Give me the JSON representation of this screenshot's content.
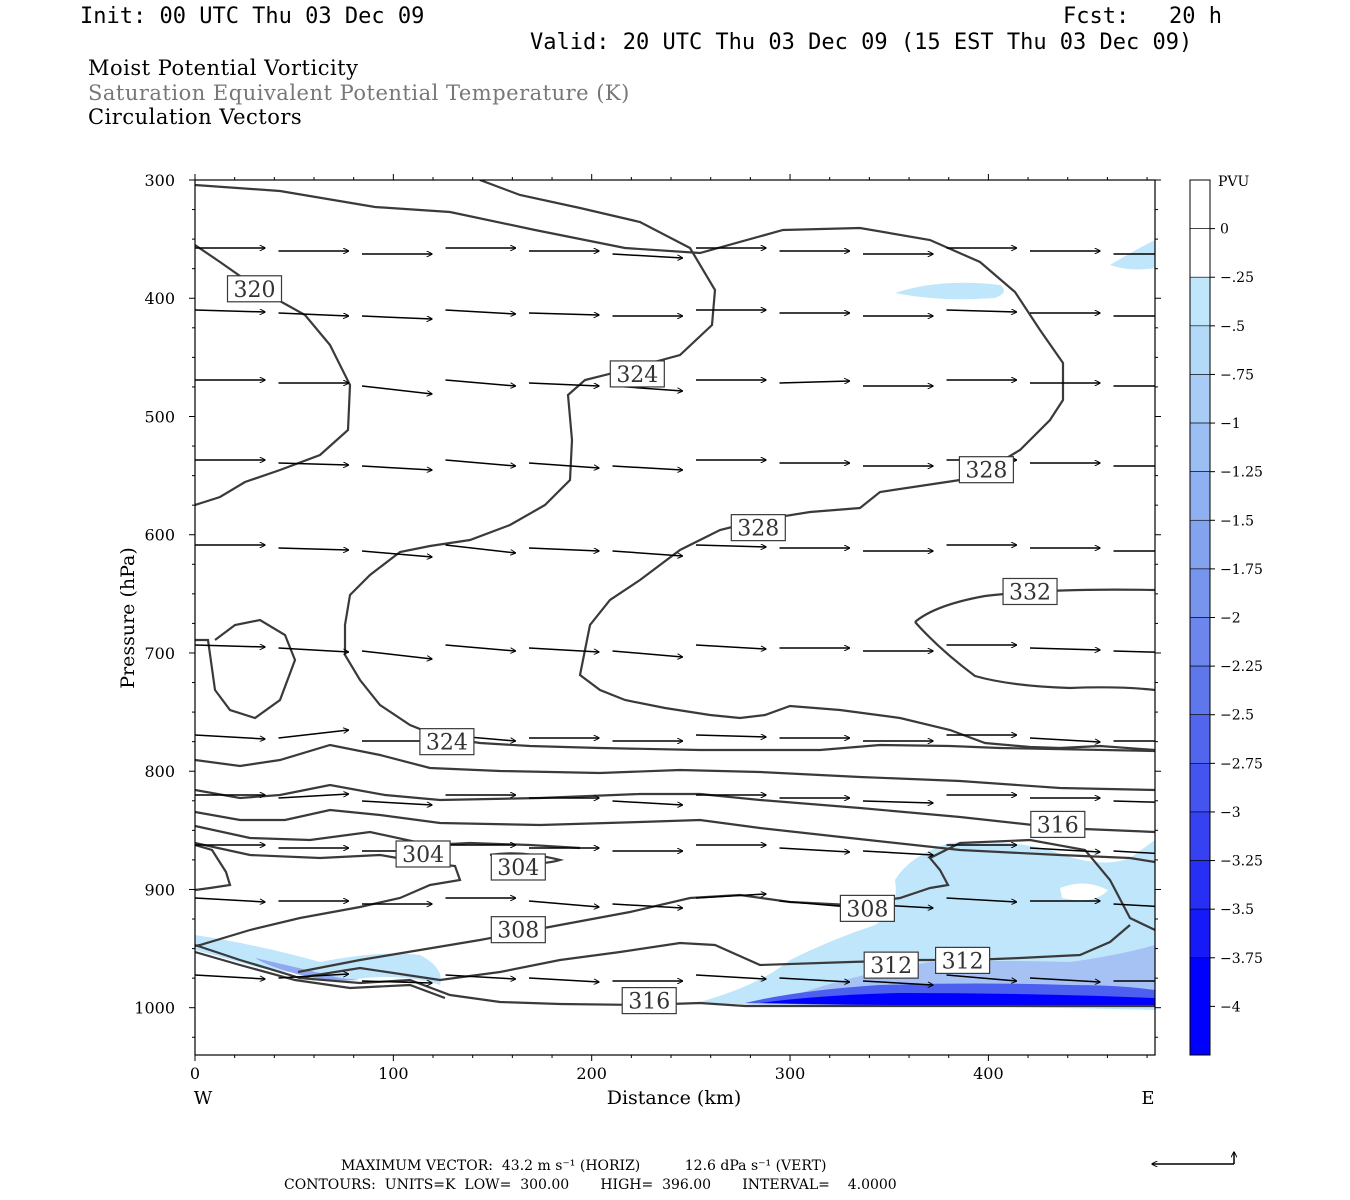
{
  "header": {
    "init": "Init: 00 UTC Thu 03 Dec 09",
    "fcst": "Fcst:   20 h",
    "valid": "Valid: 20 UTC Thu 03 Dec 09 (15 EST Thu 03 Dec 09)"
  },
  "titles": {
    "line1": "Moist Potential Vorticity",
    "line2": "Saturation Equivalent Potential Temperature (K)",
    "line3": "Circulation Vectors"
  },
  "footer": {
    "line1": "MAXIMUM VECTOR:  43.2 m s⁻¹ (HORIZ)          12.6 dPa s⁻¹ (VERT)",
    "line2": "CONTOURS:  UNITS=K  LOW=  300.00       HIGH=  396.00       INTERVAL=    4.0000"
  },
  "colors": {
    "contour": "#3a3a3a",
    "pvu_light": "#bfe6fb",
    "pvu_strong": "#0000ff"
  },
  "chart_data": {
    "type": "contour",
    "xlabel": "Distance (km)",
    "ylabel": "Pressure (hPa)",
    "xlim": [
      0,
      484
    ],
    "ylim": [
      1040,
      300
    ],
    "x_ticks": [
      "0",
      "100",
      "200",
      "300",
      "400"
    ],
    "x_tick_values": [
      0,
      100,
      200,
      300,
      400
    ],
    "y_ticks": [
      "300",
      "400",
      "500",
      "600",
      "700",
      "800",
      "900",
      "1000"
    ],
    "y_tick_values": [
      300,
      400,
      500,
      600,
      700,
      800,
      900,
      1000
    ],
    "x_end_labels": {
      "left": "W",
      "right": "E"
    },
    "contour_field": "Saturation Equivalent Potential Temperature",
    "contour_labels": [
      {
        "text": "320",
        "x": 30,
        "p": 392
      },
      {
        "text": "324",
        "x": 223,
        "p": 464
      },
      {
        "text": "328",
        "x": 284,
        "p": 594
      },
      {
        "text": "328",
        "x": 399,
        "p": 545
      },
      {
        "text": "332",
        "x": 421,
        "p": 648
      },
      {
        "text": "324",
        "x": 127,
        "p": 775
      },
      {
        "text": "316",
        "x": 435,
        "p": 845
      },
      {
        "text": "304",
        "x": 115,
        "p": 870
      },
      {
        "text": "304",
        "x": 163,
        "p": 881
      },
      {
        "text": "308",
        "x": 339,
        "p": 916
      },
      {
        "text": "308",
        "x": 163,
        "p": 934
      },
      {
        "text": "312",
        "x": 351,
        "p": 964
      },
      {
        "text": "312",
        "x": 387,
        "p": 960
      },
      {
        "text": "316",
        "x": 229,
        "p": 994
      }
    ],
    "colorbar": {
      "unit": "PVU",
      "labels": [
        "0",
        "-.25",
        "-.5",
        "-.75",
        "-1",
        "-1.25",
        "-1.5",
        "-1.75",
        "-2",
        "-2.25",
        "-2.5",
        "-2.75",
        "-3",
        "-3.25",
        "-3.5",
        "-3.75",
        "-4"
      ],
      "values": [
        0,
        -0.25,
        -0.5,
        -0.75,
        -1,
        -1.25,
        -1.5,
        -1.75,
        -2,
        -2.25,
        -2.5,
        -2.75,
        -3,
        -3.25,
        -3.5,
        -3.75,
        -4
      ],
      "colors": [
        "#ffffff",
        "#ffffff",
        "#bfe6fb",
        "#b3d9f8",
        "#a8ccf5",
        "#9cbff3",
        "#90b1f1",
        "#84a3ef",
        "#7895ee",
        "#6c86ed",
        "#5f77ec",
        "#5266ed",
        "#4454ee",
        "#3642f1",
        "#272ff4",
        "#161af8",
        "#0000ff"
      ]
    },
    "reference_vector": {
      "horiz": 43.2,
      "horiz_unit": "m s-1",
      "vert": 12.6,
      "vert_unit": "dPa s-1"
    },
    "contours": {
      "units": "K",
      "low": 300.0,
      "high": 396.0,
      "interval": 4.0
    }
  }
}
